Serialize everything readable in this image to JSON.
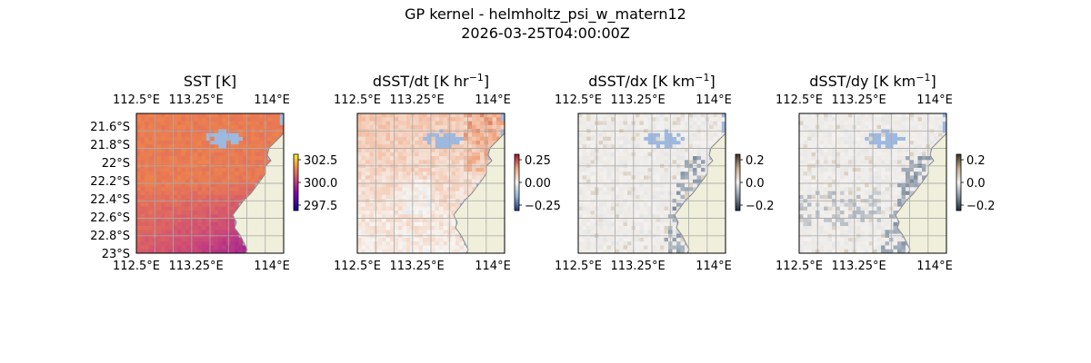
{
  "figure": {
    "title": "GP kernel - helmholtz_psi_w_matern12",
    "subtitle": "2026-03-25T04:00:00Z"
  },
  "chart_data": [
    {
      "type": "heatmap",
      "title": "SST [K]",
      "title_suffix": "",
      "x_tick_labels": [
        "112.5°E",
        "113.25°E",
        "114°E"
      ],
      "y_tick_labels": [
        "21.6°S",
        "21.8°S",
        "22°S",
        "22.2°S",
        "22.4°S",
        "22.6°S",
        "22.8°S",
        "23°S"
      ],
      "xlim": [
        112.4,
        114.25
      ],
      "ylim": [
        -23.03,
        -21.45
      ],
      "colorbar": {
        "ticks": [
          "302.5",
          "300.0",
          "297.5"
        ],
        "range": [
          296.9,
          303.3
        ],
        "cmap": "plasma-like"
      },
      "grid": true,
      "land_color": "#efefdb",
      "nodata_color": "#9db9e0"
    },
    {
      "type": "heatmap",
      "title": "dSST/dt [K hr",
      "title_suffix": "−1",
      "title_close": "]",
      "x_tick_labels": [
        "112.5°E",
        "113.25°E",
        "114°E"
      ],
      "y_tick_labels": [],
      "colorbar": {
        "ticks": [
          "0.25",
          "0.00",
          "−0.25"
        ],
        "range": [
          -0.4,
          0.4
        ],
        "cmap": "diverging blue-white-red"
      },
      "grid": true
    },
    {
      "type": "heatmap",
      "title": "dSST/dx [K km",
      "title_suffix": "−1",
      "title_close": "]",
      "x_tick_labels": [
        "112.5°E",
        "113.25°E",
        "114°E"
      ],
      "y_tick_labels": [],
      "colorbar": {
        "ticks": [
          "0.2",
          "0.0",
          "−0.2"
        ],
        "range": [
          -0.2,
          0.2
        ],
        "cmap": "diverging slate-white-tan"
      },
      "grid": true
    },
    {
      "type": "heatmap",
      "title": "dSST/dy [K km",
      "title_suffix": "−1",
      "title_close": "]",
      "x_tick_labels": [
        "112.5°E",
        "113.25°E",
        "114°E"
      ],
      "y_tick_labels": [],
      "colorbar": {
        "ticks": [
          "0.2",
          "0.0",
          "−0.2"
        ],
        "range": [
          -0.2,
          0.2
        ],
        "cmap": "diverging slate-white-tan"
      },
      "grid": true
    }
  ]
}
